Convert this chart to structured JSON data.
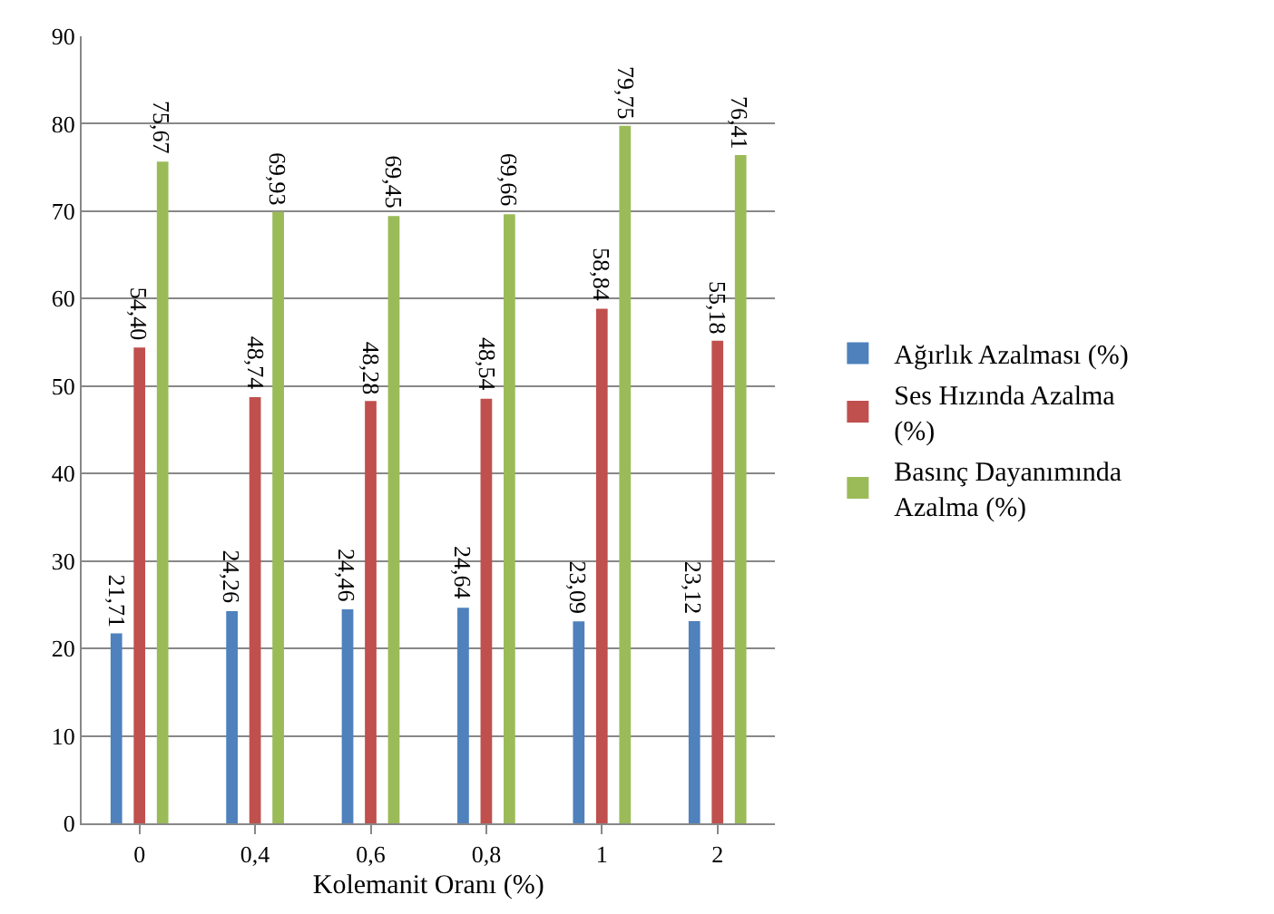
{
  "chart_data": {
    "type": "bar",
    "xlabel": "Kolemanit Oranı (%)",
    "categories": [
      "0",
      "0,4",
      "0,6",
      "0,8",
      "1",
      "2"
    ],
    "series": [
      {
        "name": "Ağırlık Azalması (%)",
        "color": "#4f81bd",
        "values": [
          21.71,
          24.26,
          24.46,
          24.64,
          23.09,
          23.12
        ],
        "value_labels": [
          "21,71",
          "24,26",
          "24,46",
          "24,64",
          "23,09",
          "23,12"
        ]
      },
      {
        "name": "Ses Hızında Azalma (%)",
        "color": "#c0504d",
        "values": [
          54.4,
          48.74,
          48.28,
          48.54,
          58.84,
          55.18
        ],
        "value_labels": [
          "54,40",
          "48,74",
          "48,28",
          "48,54",
          "58,84",
          "55,18"
        ]
      },
      {
        "name": "Basınç Dayanımında Azalma (%)",
        "color": "#9bbb59",
        "values": [
          75.67,
          69.93,
          69.45,
          69.66,
          79.75,
          76.41
        ],
        "value_labels": [
          "75,67",
          "69,93",
          "69,45",
          "69,66",
          "79,75",
          "76,41"
        ]
      }
    ],
    "ylim": [
      0,
      90
    ],
    "yticks": [
      0,
      10,
      20,
      30,
      40,
      50,
      60,
      70,
      80,
      90
    ],
    "grid": "y",
    "legend": "right"
  }
}
